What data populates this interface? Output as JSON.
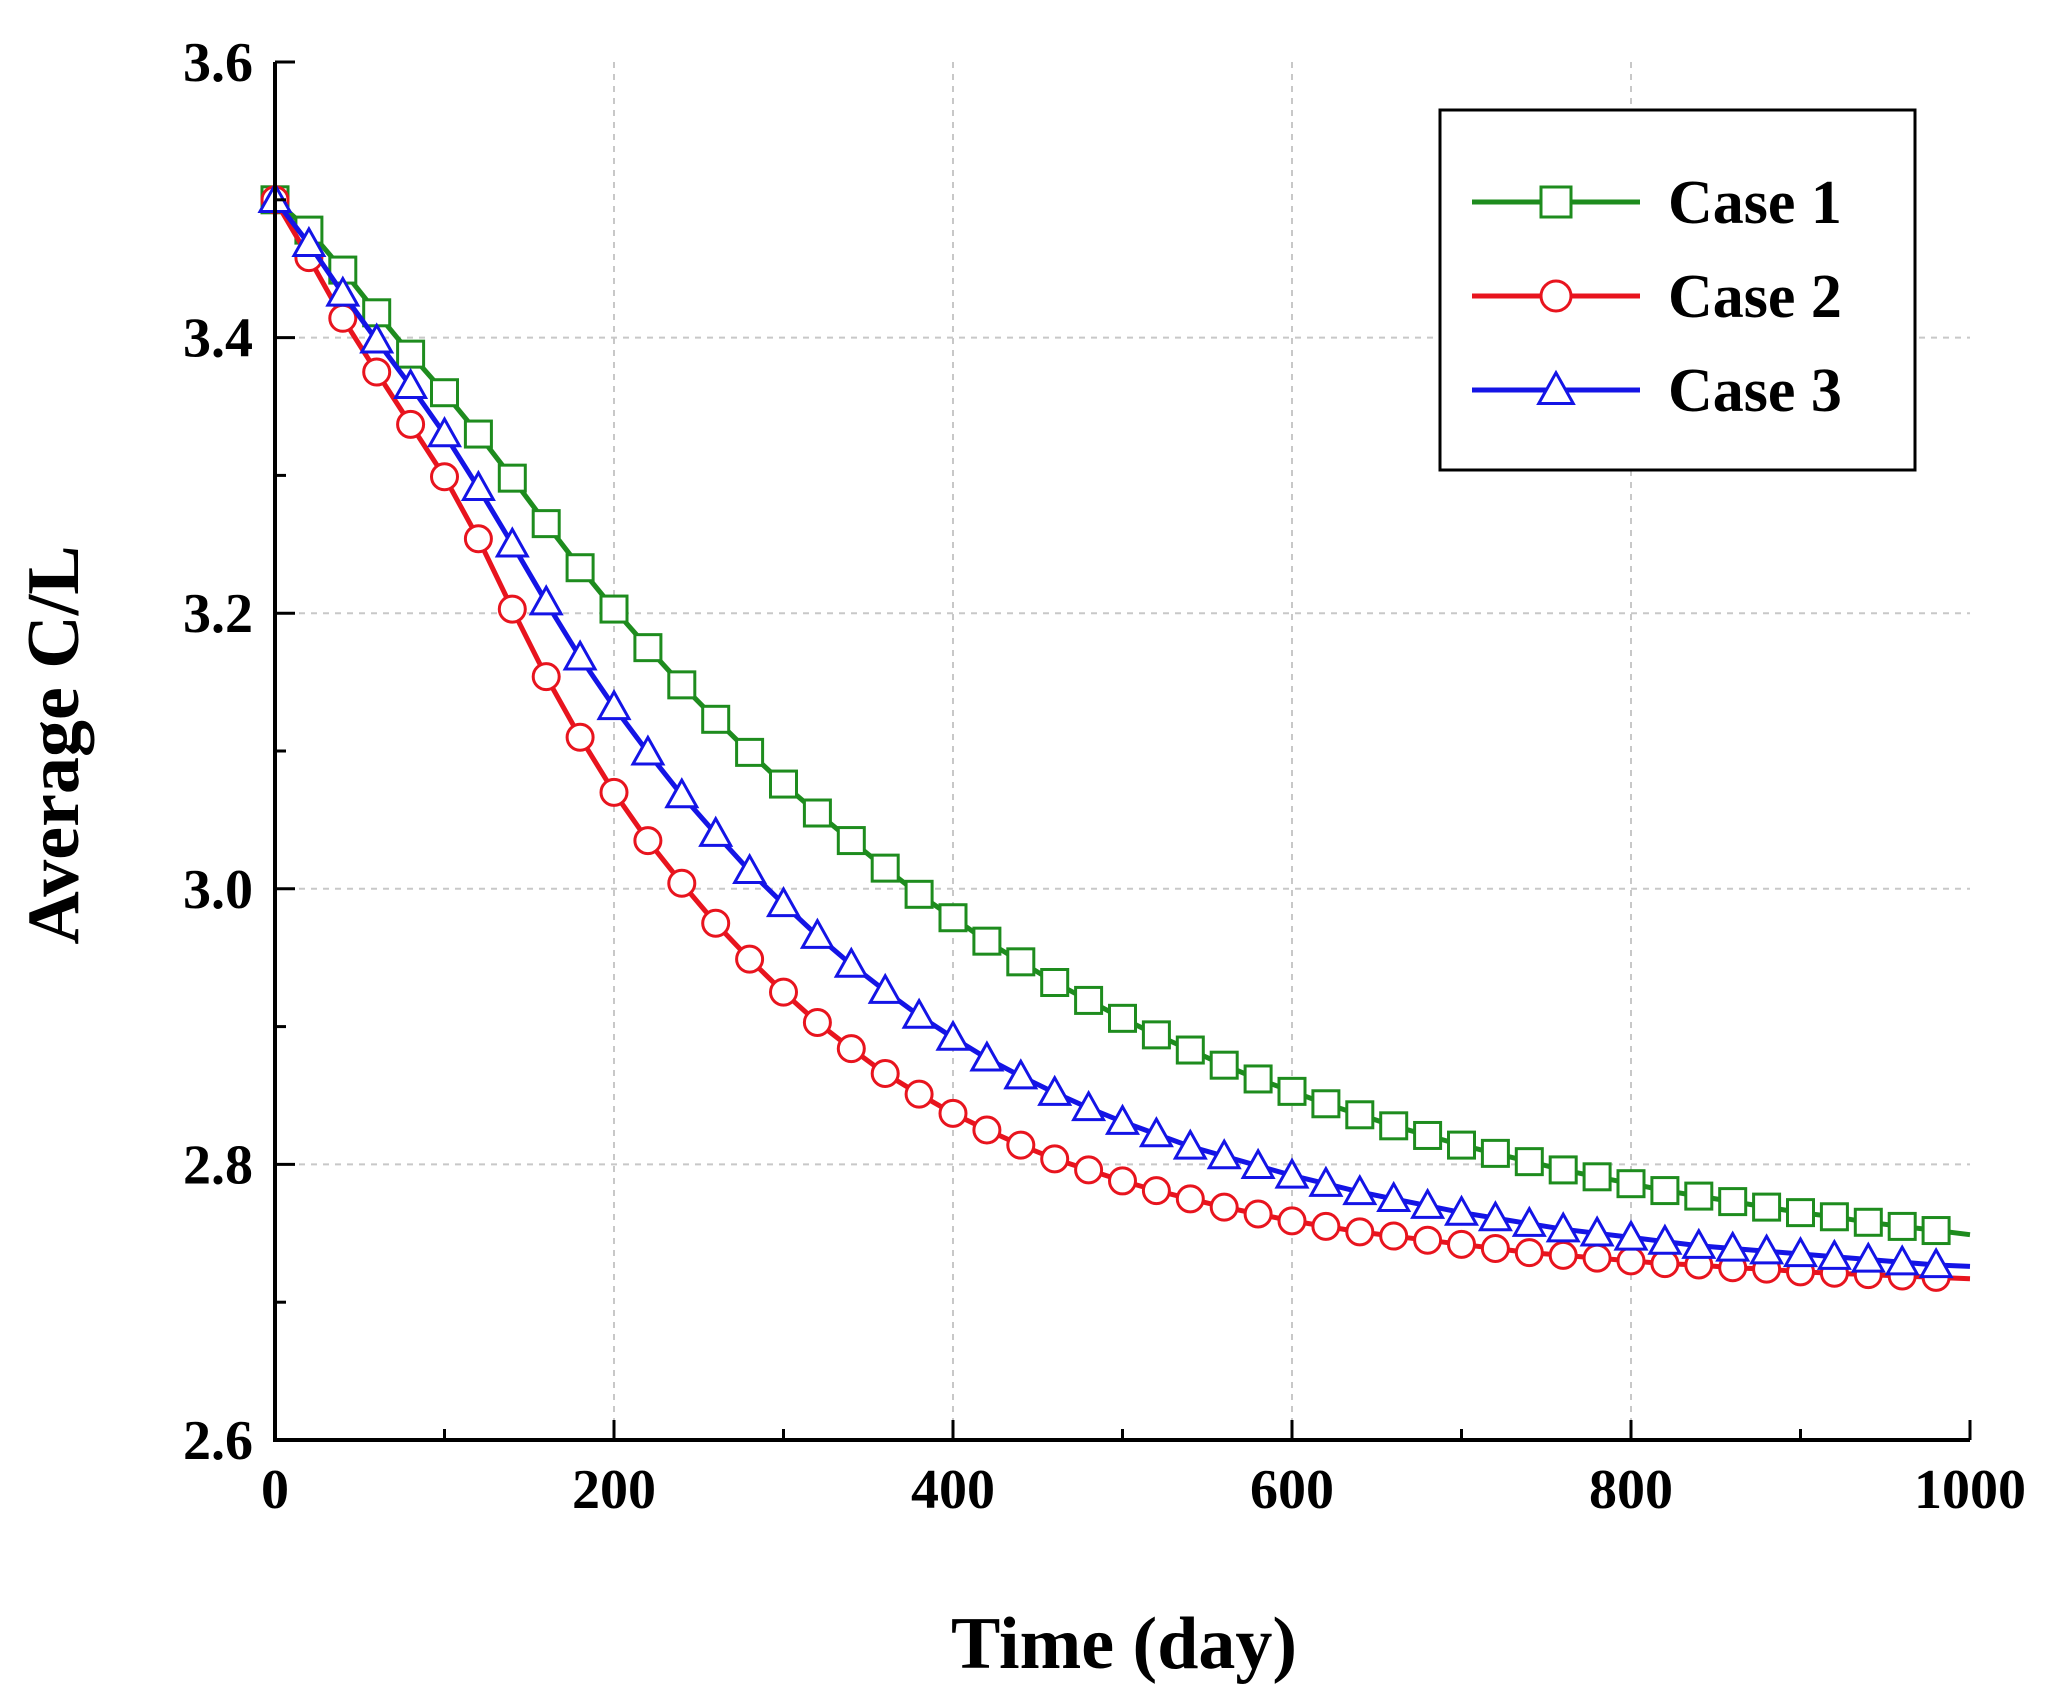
{
  "chart_data": {
    "type": "line",
    "title": "",
    "xlabel": "Time (day)",
    "ylabel": "Average C/L",
    "xlim": [
      0,
      1000
    ],
    "ylim": [
      2.6,
      3.6
    ],
    "x_ticks": [
      "0",
      "200",
      "400",
      "600",
      "800",
      "1000"
    ],
    "y_ticks": [
      "2.6",
      "2.8",
      "3.0",
      "3.2",
      "3.4",
      "3.6"
    ],
    "grid": true,
    "legend_position": "top-right",
    "x": [
      0,
      20,
      40,
      60,
      80,
      100,
      120,
      140,
      160,
      180,
      200,
      220,
      240,
      260,
      280,
      300,
      320,
      340,
      360,
      380,
      400,
      420,
      440,
      460,
      480,
      500,
      520,
      540,
      560,
      580,
      600,
      620,
      640,
      660,
      680,
      700,
      720,
      740,
      760,
      780,
      800,
      820,
      840,
      860,
      880,
      900,
      920,
      940,
      960,
      980,
      1000
    ],
    "series": [
      {
        "name": "Case 1",
        "color": "#1e8c1e",
        "marker": "square",
        "values": [
          3.5,
          3.478,
          3.449,
          3.418,
          3.388,
          3.36,
          3.33,
          3.298,
          3.265,
          3.233,
          3.203,
          3.175,
          3.148,
          3.123,
          3.099,
          3.076,
          3.055,
          3.035,
          3.015,
          2.996,
          2.979,
          2.962,
          2.947,
          2.932,
          2.919,
          2.906,
          2.894,
          2.883,
          2.872,
          2.862,
          2.853,
          2.844,
          2.836,
          2.828,
          2.821,
          2.814,
          2.808,
          2.802,
          2.796,
          2.791,
          2.786,
          2.781,
          2.777,
          2.773,
          2.769,
          2.765,
          2.762,
          2.758,
          2.755,
          2.752,
          2.749
        ]
      },
      {
        "name": "Case 2",
        "color": "#e8141e",
        "marker": "circle",
        "values": [
          3.5,
          3.458,
          3.414,
          3.375,
          3.337,
          3.299,
          3.254,
          3.203,
          3.154,
          3.11,
          3.07,
          3.035,
          3.004,
          2.975,
          2.949,
          2.925,
          2.903,
          2.884,
          2.866,
          2.851,
          2.837,
          2.825,
          2.814,
          2.804,
          2.796,
          2.788,
          2.781,
          2.775,
          2.769,
          2.764,
          2.759,
          2.755,
          2.751,
          2.748,
          2.745,
          2.742,
          2.739,
          2.736,
          2.734,
          2.732,
          2.73,
          2.728,
          2.727,
          2.725,
          2.724,
          2.722,
          2.721,
          2.72,
          2.719,
          2.718,
          2.717
        ]
      },
      {
        "name": "Case 3",
        "color": "#1414e6",
        "marker": "triangle",
        "values": [
          3.5,
          3.468,
          3.432,
          3.398,
          3.365,
          3.33,
          3.291,
          3.25,
          3.208,
          3.168,
          3.132,
          3.099,
          3.068,
          3.04,
          3.013,
          2.989,
          2.966,
          2.945,
          2.926,
          2.908,
          2.892,
          2.877,
          2.864,
          2.852,
          2.841,
          2.831,
          2.822,
          2.813,
          2.806,
          2.799,
          2.792,
          2.786,
          2.78,
          2.775,
          2.77,
          2.765,
          2.761,
          2.757,
          2.753,
          2.75,
          2.747,
          2.744,
          2.741,
          2.739,
          2.737,
          2.735,
          2.733,
          2.731,
          2.729,
          2.727,
          2.726
        ]
      }
    ]
  }
}
